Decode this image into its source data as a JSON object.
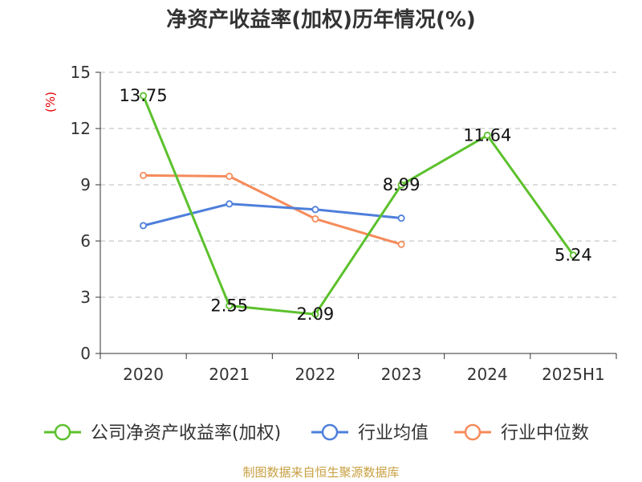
{
  "chart_data": {
    "type": "line",
    "title": "净资产收益率(加权)历年情况(%)",
    "ylabel": "(%)",
    "xlabel": "",
    "categories": [
      "2020",
      "2021",
      "2022",
      "2023",
      "2024",
      "2025H1"
    ],
    "ylim": [
      0,
      15
    ],
    "yticks": [
      0,
      3,
      6,
      9,
      12,
      15
    ],
    "grid": true,
    "legend_position": "bottom",
    "series": [
      {
        "name": "公司净资产收益率(加权)",
        "color": "#5cc12d",
        "values": [
          13.75,
          2.55,
          2.09,
          8.99,
          11.64,
          5.24
        ],
        "labels": [
          "13.75",
          "2.55",
          "2.09",
          "8.99",
          "11.64",
          "5.24"
        ]
      },
      {
        "name": "行业均值",
        "color": "#4e7fdb",
        "values": [
          6.82,
          7.98,
          7.68,
          7.22,
          null,
          null
        ]
      },
      {
        "name": "行业中位数",
        "color": "#f58b5a",
        "values": [
          9.5,
          9.45,
          7.18,
          5.82,
          null,
          null
        ]
      }
    ]
  },
  "source": "制图数据来自恒生聚源数据库"
}
